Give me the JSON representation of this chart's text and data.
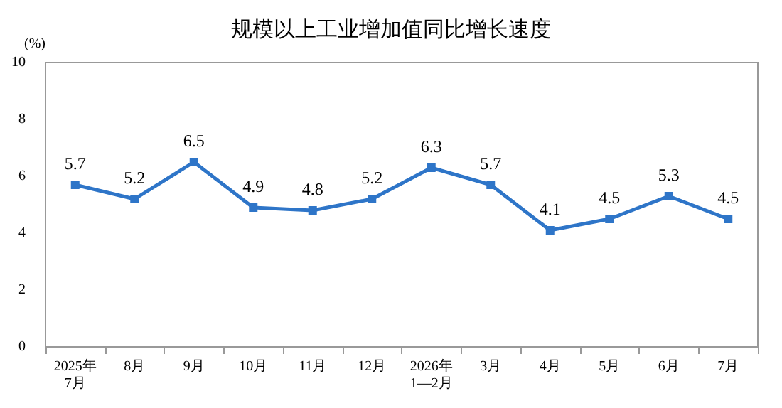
{
  "chart_data": {
    "type": "line",
    "title": "规模以上工业增加值同比增长速度",
    "ylabel": "(%)",
    "categories": [
      "2025年\n7月",
      "8月",
      "9月",
      "10月",
      "11月",
      "12月",
      "2026年\n1—2月",
      "3月",
      "4月",
      "5月",
      "6月",
      "7月"
    ],
    "series": [
      {
        "color": "#2e75c8",
        "values": [
          5.7,
          5.2,
          6.5,
          4.9,
          4.8,
          5.2,
          6.3,
          5.7,
          4.1,
          4.5,
          5.3,
          4.5
        ]
      }
    ],
    "ylim": [
      0,
      10
    ],
    "yticks": [
      0,
      2,
      4,
      6,
      8,
      10
    ],
    "grid": false,
    "marker": "square",
    "line_style": "solid",
    "data_labels": true
  }
}
